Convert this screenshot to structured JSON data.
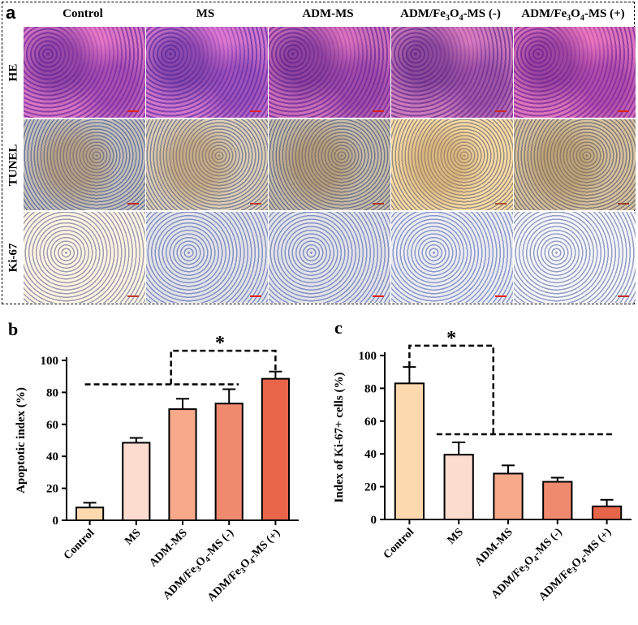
{
  "panel_a": {
    "letter": "a",
    "columns": [
      "Control",
      "MS",
      "ADM-MS",
      "ADM/Fe3O4-MS (-)",
      "ADM/Fe3O4-MS (+)"
    ],
    "rows": [
      "HE",
      "TUNEL",
      "Ki-67"
    ]
  },
  "colors": {
    "bars": [
      "#fcd9ae",
      "#fddcd0",
      "#f7a98a",
      "#f08a6e",
      "#e8654a"
    ],
    "scale_bar": "#e0231a"
  },
  "chart_data": [
    {
      "type": "bar",
      "panel": "b",
      "categories": [
        "Control",
        "MS",
        "ADM-MS",
        "ADM/Fe3O4-MS (-)",
        "ADM/Fe3O4-MS (+)"
      ],
      "values": [
        8,
        48.5,
        69.5,
        73,
        88.5
      ],
      "errors": [
        3,
        3,
        6.5,
        9,
        4.5
      ],
      "ylabel": "Apoptotic index (%)",
      "ylim": [
        0,
        100
      ],
      "yticks": [
        0,
        20,
        40,
        60,
        80,
        100
      ],
      "significance": {
        "label": "*",
        "compare": [
          "MS|ADM-MS|ADM/Fe3O4-MS (-)",
          "ADM/Fe3O4-MS (+)"
        ]
      }
    },
    {
      "type": "bar",
      "panel": "c",
      "categories": [
        "Control",
        "MS",
        "ADM-MS",
        "ADM/Fe3O4-MS (-)",
        "ADM/Fe3O4-MS (+)"
      ],
      "values": [
        83,
        39.5,
        28,
        23,
        8
      ],
      "errors": [
        10,
        7.5,
        5,
        2.5,
        4
      ],
      "ylabel": "Index of Ki-67+ cells (%)",
      "ylim": [
        0,
        100
      ],
      "yticks": [
        0,
        20,
        40,
        60,
        80,
        100
      ],
      "significance": {
        "label": "*",
        "compare": [
          "Control",
          "MS|ADM-MS|ADM/Fe3O4-MS (-)|ADM/Fe3O4-MS (+)"
        ]
      }
    }
  ]
}
